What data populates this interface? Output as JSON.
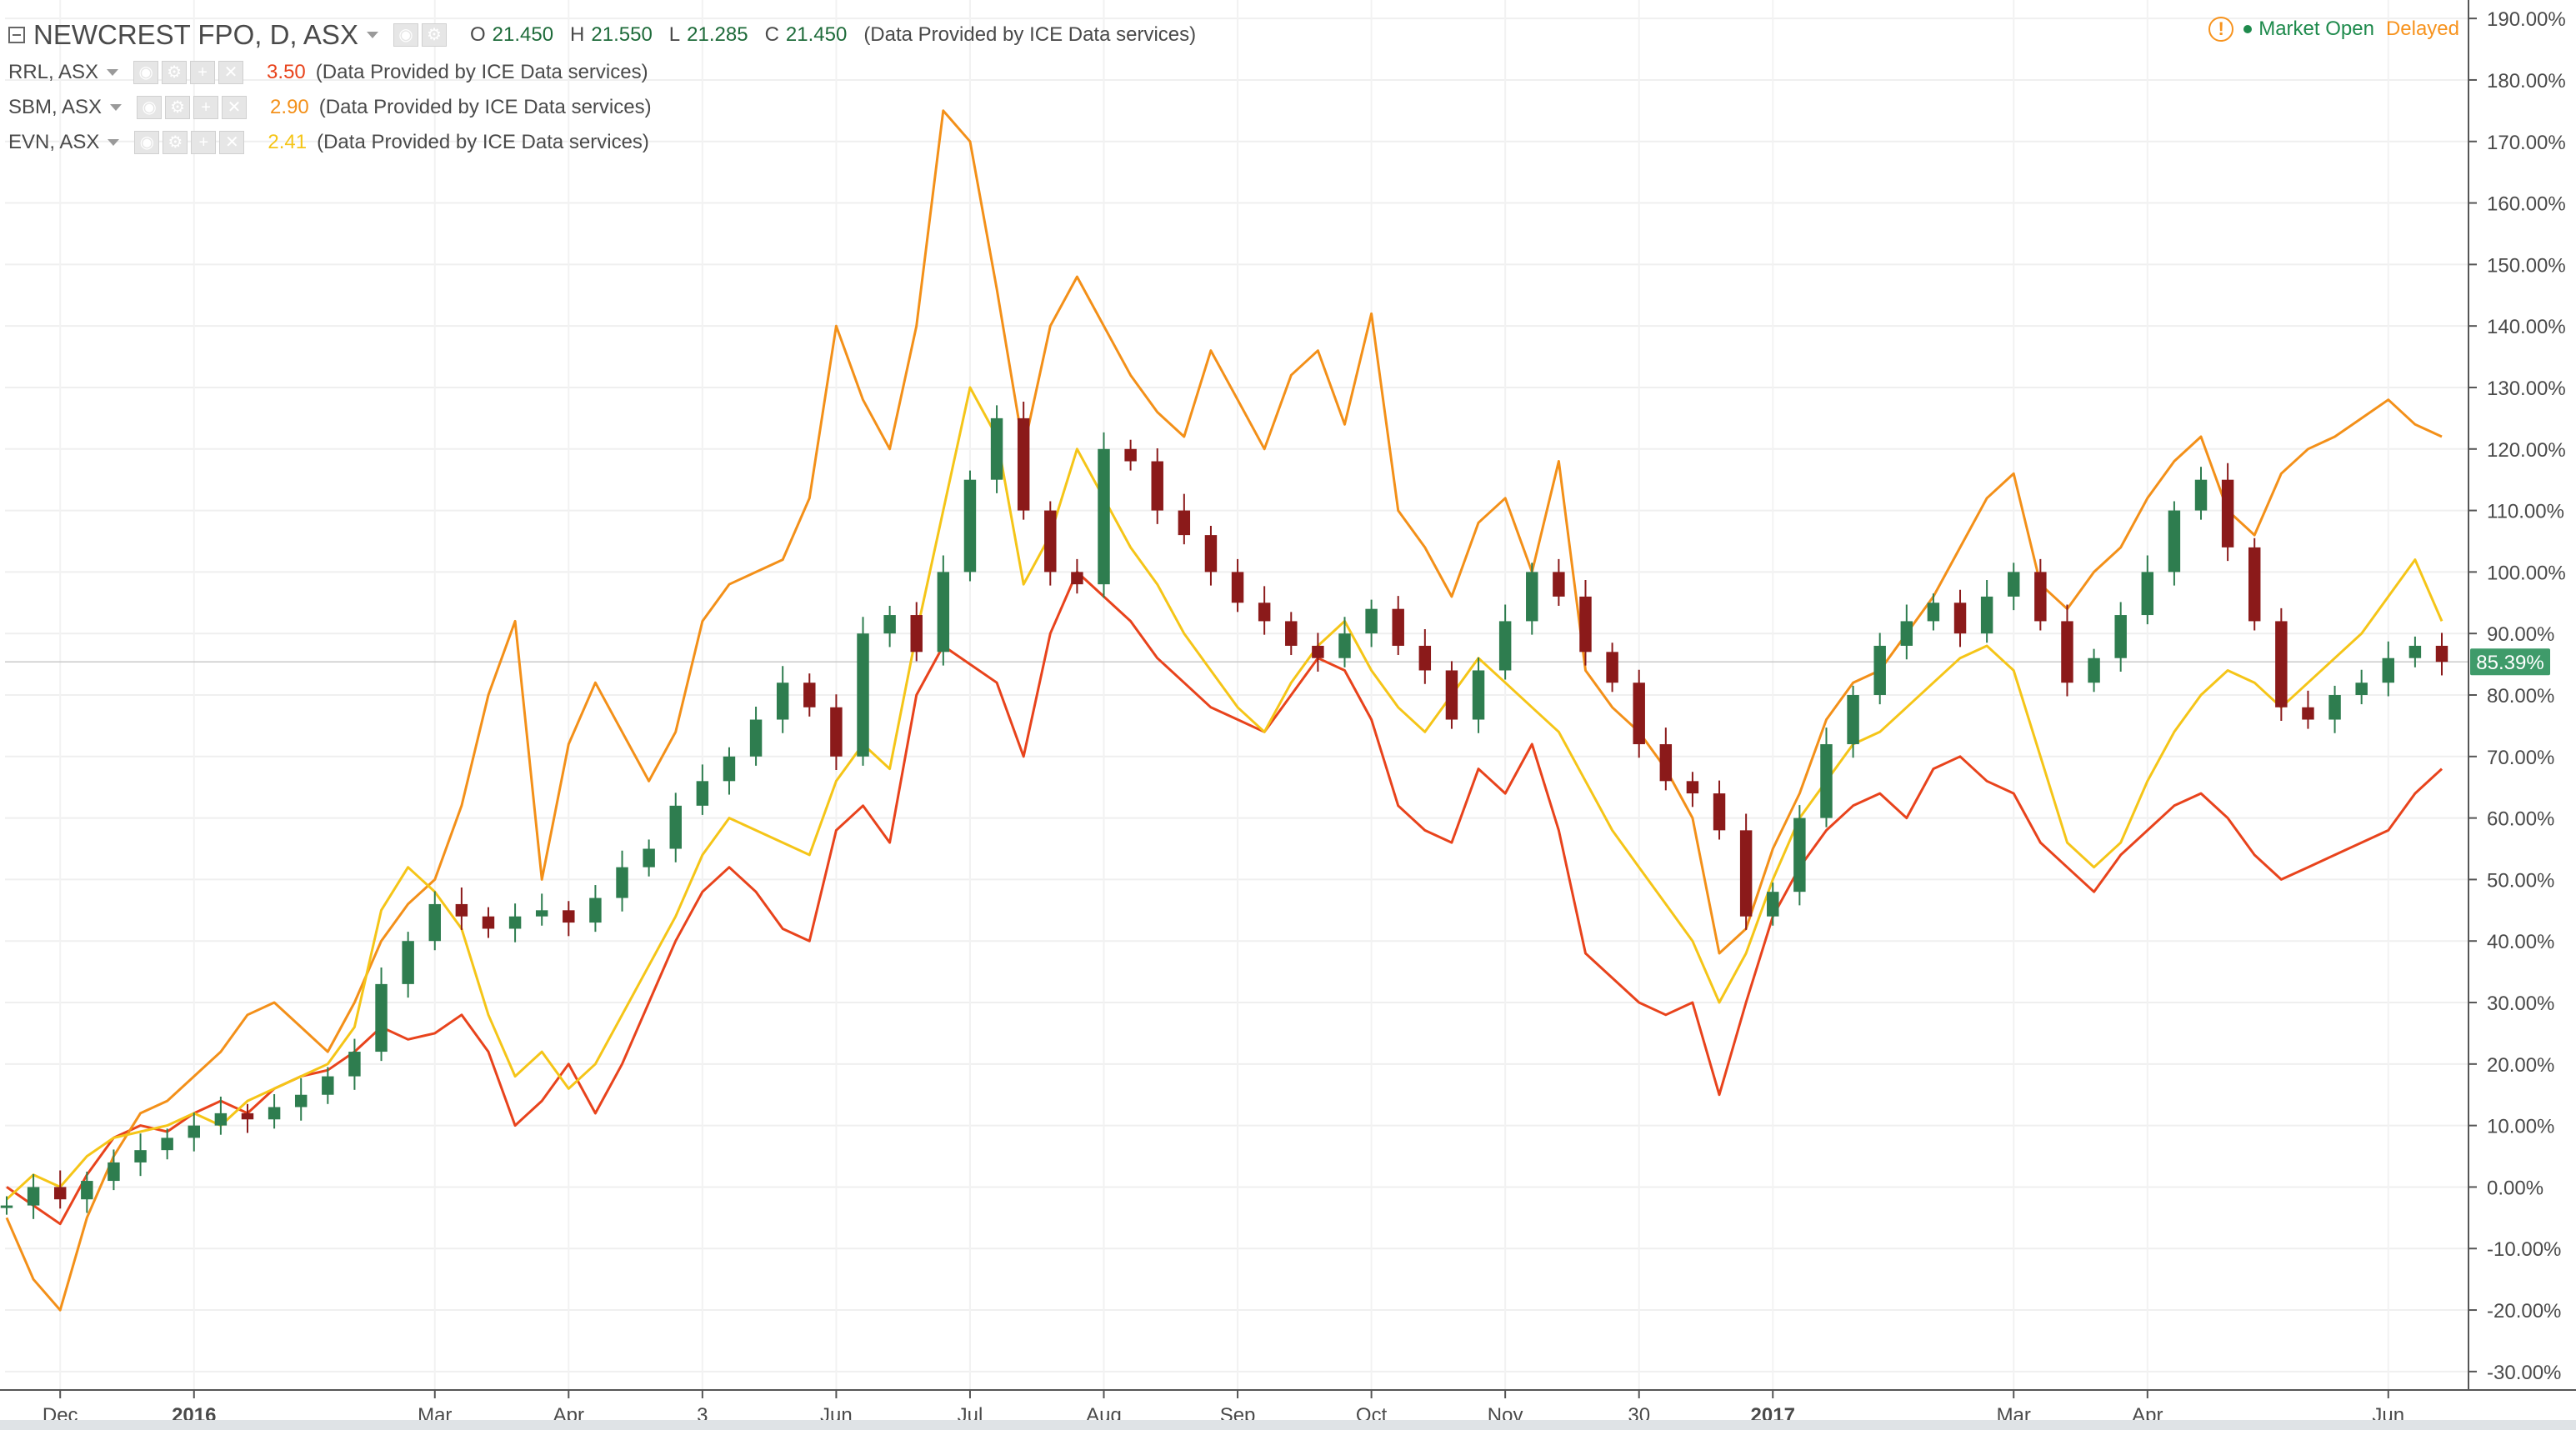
{
  "main_symbol": {
    "title": "NEWCREST FPO, D, ASX",
    "ohlc": [
      {
        "label": "O",
        "value": "21.450"
      },
      {
        "label": "H",
        "value": "21.550"
      },
      {
        "label": "L",
        "value": "21.285"
      },
      {
        "label": "C",
        "value": "21.450"
      }
    ],
    "provider": "(Data Provided by ICE Data services)"
  },
  "compare_symbols": [
    {
      "label": "RRL, ASX",
      "value": "3.50",
      "color": "#e8431c",
      "provider": "(Data Provided by ICE Data services)"
    },
    {
      "label": "SBM, ASX",
      "value": "2.90",
      "color": "#f39019",
      "provider": "(Data Provided by ICE Data services)"
    },
    {
      "label": "EVN, ASX",
      "value": "2.41",
      "color": "#f5c518",
      "provider": "(Data Provided by ICE Data services)"
    }
  ],
  "status": {
    "icon": "warning-icon",
    "open": "Market Open",
    "delayed": "Delayed"
  },
  "colors": {
    "up_candle": "#2e7d4f",
    "down_candle": "#8b1a1a",
    "rrl": "#e8431c",
    "sbm": "#f39019",
    "evn": "#f5c518",
    "last_badge": "#3f9b6a",
    "grid": "#eeeeee"
  },
  "chart_data": {
    "type": "line",
    "title": "NEWCREST FPO, D, ASX",
    "xlabel": "",
    "ylabel": "",
    "y_axis_position": "right",
    "y_scale": "percent",
    "ylim": [
      -33,
      193
    ],
    "y_ticks": [
      "190.00%",
      "180.00%",
      "170.00%",
      "160.00%",
      "150.00%",
      "140.00%",
      "130.00%",
      "120.00%",
      "110.00%",
      "100.00%",
      "90.00%",
      "80.00%",
      "70.00%",
      "60.00%",
      "50.00%",
      "40.00%",
      "30.00%",
      "20.00%",
      "10.00%",
      "0.00%",
      "-10.00%",
      "-20.00%",
      "-30.00%"
    ],
    "y_tick_values": [
      190,
      180,
      170,
      160,
      150,
      140,
      130,
      120,
      110,
      100,
      90,
      80,
      70,
      60,
      50,
      40,
      30,
      20,
      10,
      0,
      -10,
      -20,
      -30
    ],
    "x_ticks": [
      {
        "label": "Dec",
        "i": 2
      },
      {
        "label": "2016",
        "i": 7
      },
      {
        "label": "Mar",
        "i": 16
      },
      {
        "label": "Apr",
        "i": 21
      },
      {
        "label": "3",
        "i": 26
      },
      {
        "label": "Jun",
        "i": 31
      },
      {
        "label": "Jul",
        "i": 36
      },
      {
        "label": "Aug",
        "i": 41
      },
      {
        "label": "Sep",
        "i": 46
      },
      {
        "label": "Oct",
        "i": 51
      },
      {
        "label": "Nov",
        "i": 56
      },
      {
        "label": "30",
        "i": 61
      },
      {
        "label": "2017",
        "i": 66
      },
      {
        "label": "Mar",
        "i": 75
      },
      {
        "label": "Apr",
        "i": 80
      },
      {
        "label": "Jun",
        "i": 89
      }
    ],
    "x_count": 92,
    "last_value_label": "85.39%",
    "last_value": 85.39,
    "grid": true,
    "legend": "top-left",
    "series": [
      {
        "name": "NEWCREST FPO, D, ASX",
        "kind": "candlestick",
        "values": [
          -3,
          0,
          -2,
          1,
          4,
          6,
          8,
          10,
          12,
          11,
          13,
          15,
          18,
          22,
          33,
          40,
          46,
          44,
          42,
          44,
          45,
          43,
          47,
          52,
          55,
          62,
          66,
          70,
          76,
          82,
          78,
          70,
          90,
          93,
          87,
          100,
          115,
          125,
          110,
          100,
          98,
          120,
          118,
          110,
          106,
          100,
          95,
          92,
          88,
          86,
          90,
          94,
          88,
          84,
          76,
          84,
          92,
          100,
          96,
          87,
          82,
          72,
          66,
          64,
          58,
          44,
          48,
          60,
          72,
          80,
          88,
          92,
          95,
          90,
          96,
          100,
          92,
          82,
          86,
          93,
          100,
          110,
          115,
          104,
          92,
          78,
          76,
          80,
          82,
          86,
          88,
          85.39
        ]
      },
      {
        "name": "RRL, ASX",
        "kind": "line",
        "color": "#e8431c",
        "values": [
          0,
          -3,
          -6,
          2,
          8,
          10,
          9,
          12,
          14,
          12,
          16,
          18,
          19,
          22,
          26,
          24,
          25,
          28,
          22,
          10,
          14,
          20,
          12,
          20,
          30,
          40,
          48,
          52,
          48,
          42,
          40,
          58,
          62,
          56,
          80,
          88,
          85,
          82,
          70,
          90,
          100,
          96,
          92,
          86,
          82,
          78,
          76,
          74,
          80,
          86,
          84,
          76,
          62,
          58,
          56,
          68,
          64,
          72,
          58,
          38,
          34,
          30,
          28,
          30,
          15,
          30,
          44,
          52,
          58,
          62,
          64,
          60,
          68,
          70,
          66,
          64,
          56,
          52,
          48,
          54,
          58,
          62,
          64,
          60,
          54,
          50,
          52,
          54,
          56,
          58,
          64,
          68
        ]
      },
      {
        "name": "SBM, ASX",
        "kind": "line",
        "color": "#f39019",
        "values": [
          -5,
          -15,
          -20,
          -5,
          5,
          12,
          14,
          18,
          22,
          28,
          30,
          26,
          22,
          30,
          40,
          46,
          50,
          62,
          80,
          92,
          50,
          72,
          82,
          74,
          66,
          74,
          92,
          98,
          100,
          102,
          112,
          140,
          128,
          120,
          140,
          175,
          170,
          146,
          120,
          140,
          148,
          140,
          132,
          126,
          122,
          136,
          128,
          120,
          132,
          136,
          124,
          142,
          110,
          104,
          96,
          108,
          112,
          100,
          118,
          84,
          78,
          74,
          68,
          60,
          38,
          42,
          55,
          64,
          76,
          82,
          84,
          90,
          96,
          104,
          112,
          116,
          98,
          94,
          100,
          104,
          112,
          118,
          122,
          110,
          106,
          116,
          120,
          122,
          125,
          128,
          124,
          122
        ]
      },
      {
        "name": "EVN, ASX",
        "kind": "line",
        "color": "#f5c518",
        "values": [
          -2,
          2,
          0,
          5,
          8,
          9,
          10,
          12,
          10,
          14,
          16,
          18,
          20,
          26,
          45,
          52,
          48,
          42,
          28,
          18,
          22,
          16,
          20,
          28,
          36,
          44,
          54,
          60,
          58,
          56,
          54,
          66,
          72,
          68,
          90,
          110,
          130,
          122,
          98,
          106,
          120,
          112,
          104,
          98,
          90,
          84,
          78,
          74,
          82,
          88,
          92,
          84,
          78,
          74,
          80,
          86,
          82,
          78,
          74,
          66,
          58,
          52,
          46,
          40,
          30,
          38,
          50,
          60,
          66,
          72,
          74,
          78,
          82,
          86,
          88,
          84,
          70,
          56,
          52,
          56,
          66,
          74,
          80,
          84,
          82,
          78,
          82,
          86,
          90,
          96,
          102,
          92
        ]
      }
    ]
  }
}
